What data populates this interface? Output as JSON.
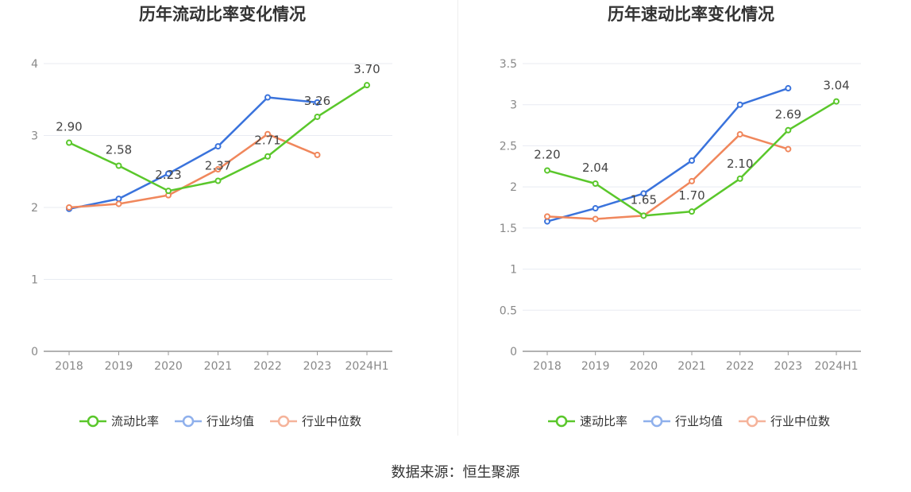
{
  "colors": {
    "ratio": "#5ac72b",
    "industry_avg": "#3a73dc",
    "industry_median": "#f0875c",
    "legend_avg": "#8fb0ec",
    "legend_median": "#f5b39a",
    "grid": "#e8ebf2",
    "axis": "#999999",
    "axis_label": "#888888",
    "title": "#333333"
  },
  "source_text": "数据来源：恒生聚源",
  "chart_data": [
    {
      "type": "line",
      "title": "历年流动比率变化情况",
      "categories": [
        "2018",
        "2019",
        "2020",
        "2021",
        "2022",
        "2023",
        "2024H1"
      ],
      "ylim": [
        0,
        4
      ],
      "yticks": [
        0,
        1,
        2,
        3,
        4
      ],
      "grid": true,
      "legend_position": "bottom",
      "series": [
        {
          "name": "流动比率",
          "color_key": "ratio",
          "values": [
            2.9,
            2.58,
            2.23,
            2.37,
            2.71,
            3.26,
            3.7
          ],
          "labels": [
            "2.90",
            "2.58",
            "2.23",
            "2.37",
            "2.71",
            "3.26",
            "3.70"
          ]
        },
        {
          "name": "行业均值",
          "color_key": "industry_avg",
          "values": [
            1.98,
            2.12,
            2.47,
            2.85,
            3.53,
            3.46,
            null
          ]
        },
        {
          "name": "行业中位数",
          "color_key": "industry_median",
          "values": [
            2.0,
            2.05,
            2.17,
            2.53,
            3.02,
            2.73,
            null
          ]
        }
      ]
    },
    {
      "type": "line",
      "title": "历年速动比率变化情况",
      "categories": [
        "2018",
        "2019",
        "2020",
        "2021",
        "2022",
        "2023",
        "2024H1"
      ],
      "ylim": [
        0,
        3.5
      ],
      "yticks": [
        0,
        0.5,
        1,
        1.5,
        2,
        2.5,
        3,
        3.5
      ],
      "grid": true,
      "legend_position": "bottom",
      "series": [
        {
          "name": "速动比率",
          "color_key": "ratio",
          "values": [
            2.2,
            2.04,
            1.65,
            1.7,
            2.1,
            2.69,
            3.04
          ],
          "labels": [
            "2.20",
            "2.04",
            "1.65",
            "1.70",
            "2.10",
            "2.69",
            "3.04"
          ]
        },
        {
          "name": "行业均值",
          "color_key": "industry_avg",
          "values": [
            1.58,
            1.74,
            1.92,
            2.32,
            3.0,
            3.2,
            null
          ]
        },
        {
          "name": "行业中位数",
          "color_key": "industry_median",
          "values": [
            1.64,
            1.61,
            1.65,
            2.07,
            2.64,
            2.46,
            null
          ]
        }
      ]
    }
  ]
}
